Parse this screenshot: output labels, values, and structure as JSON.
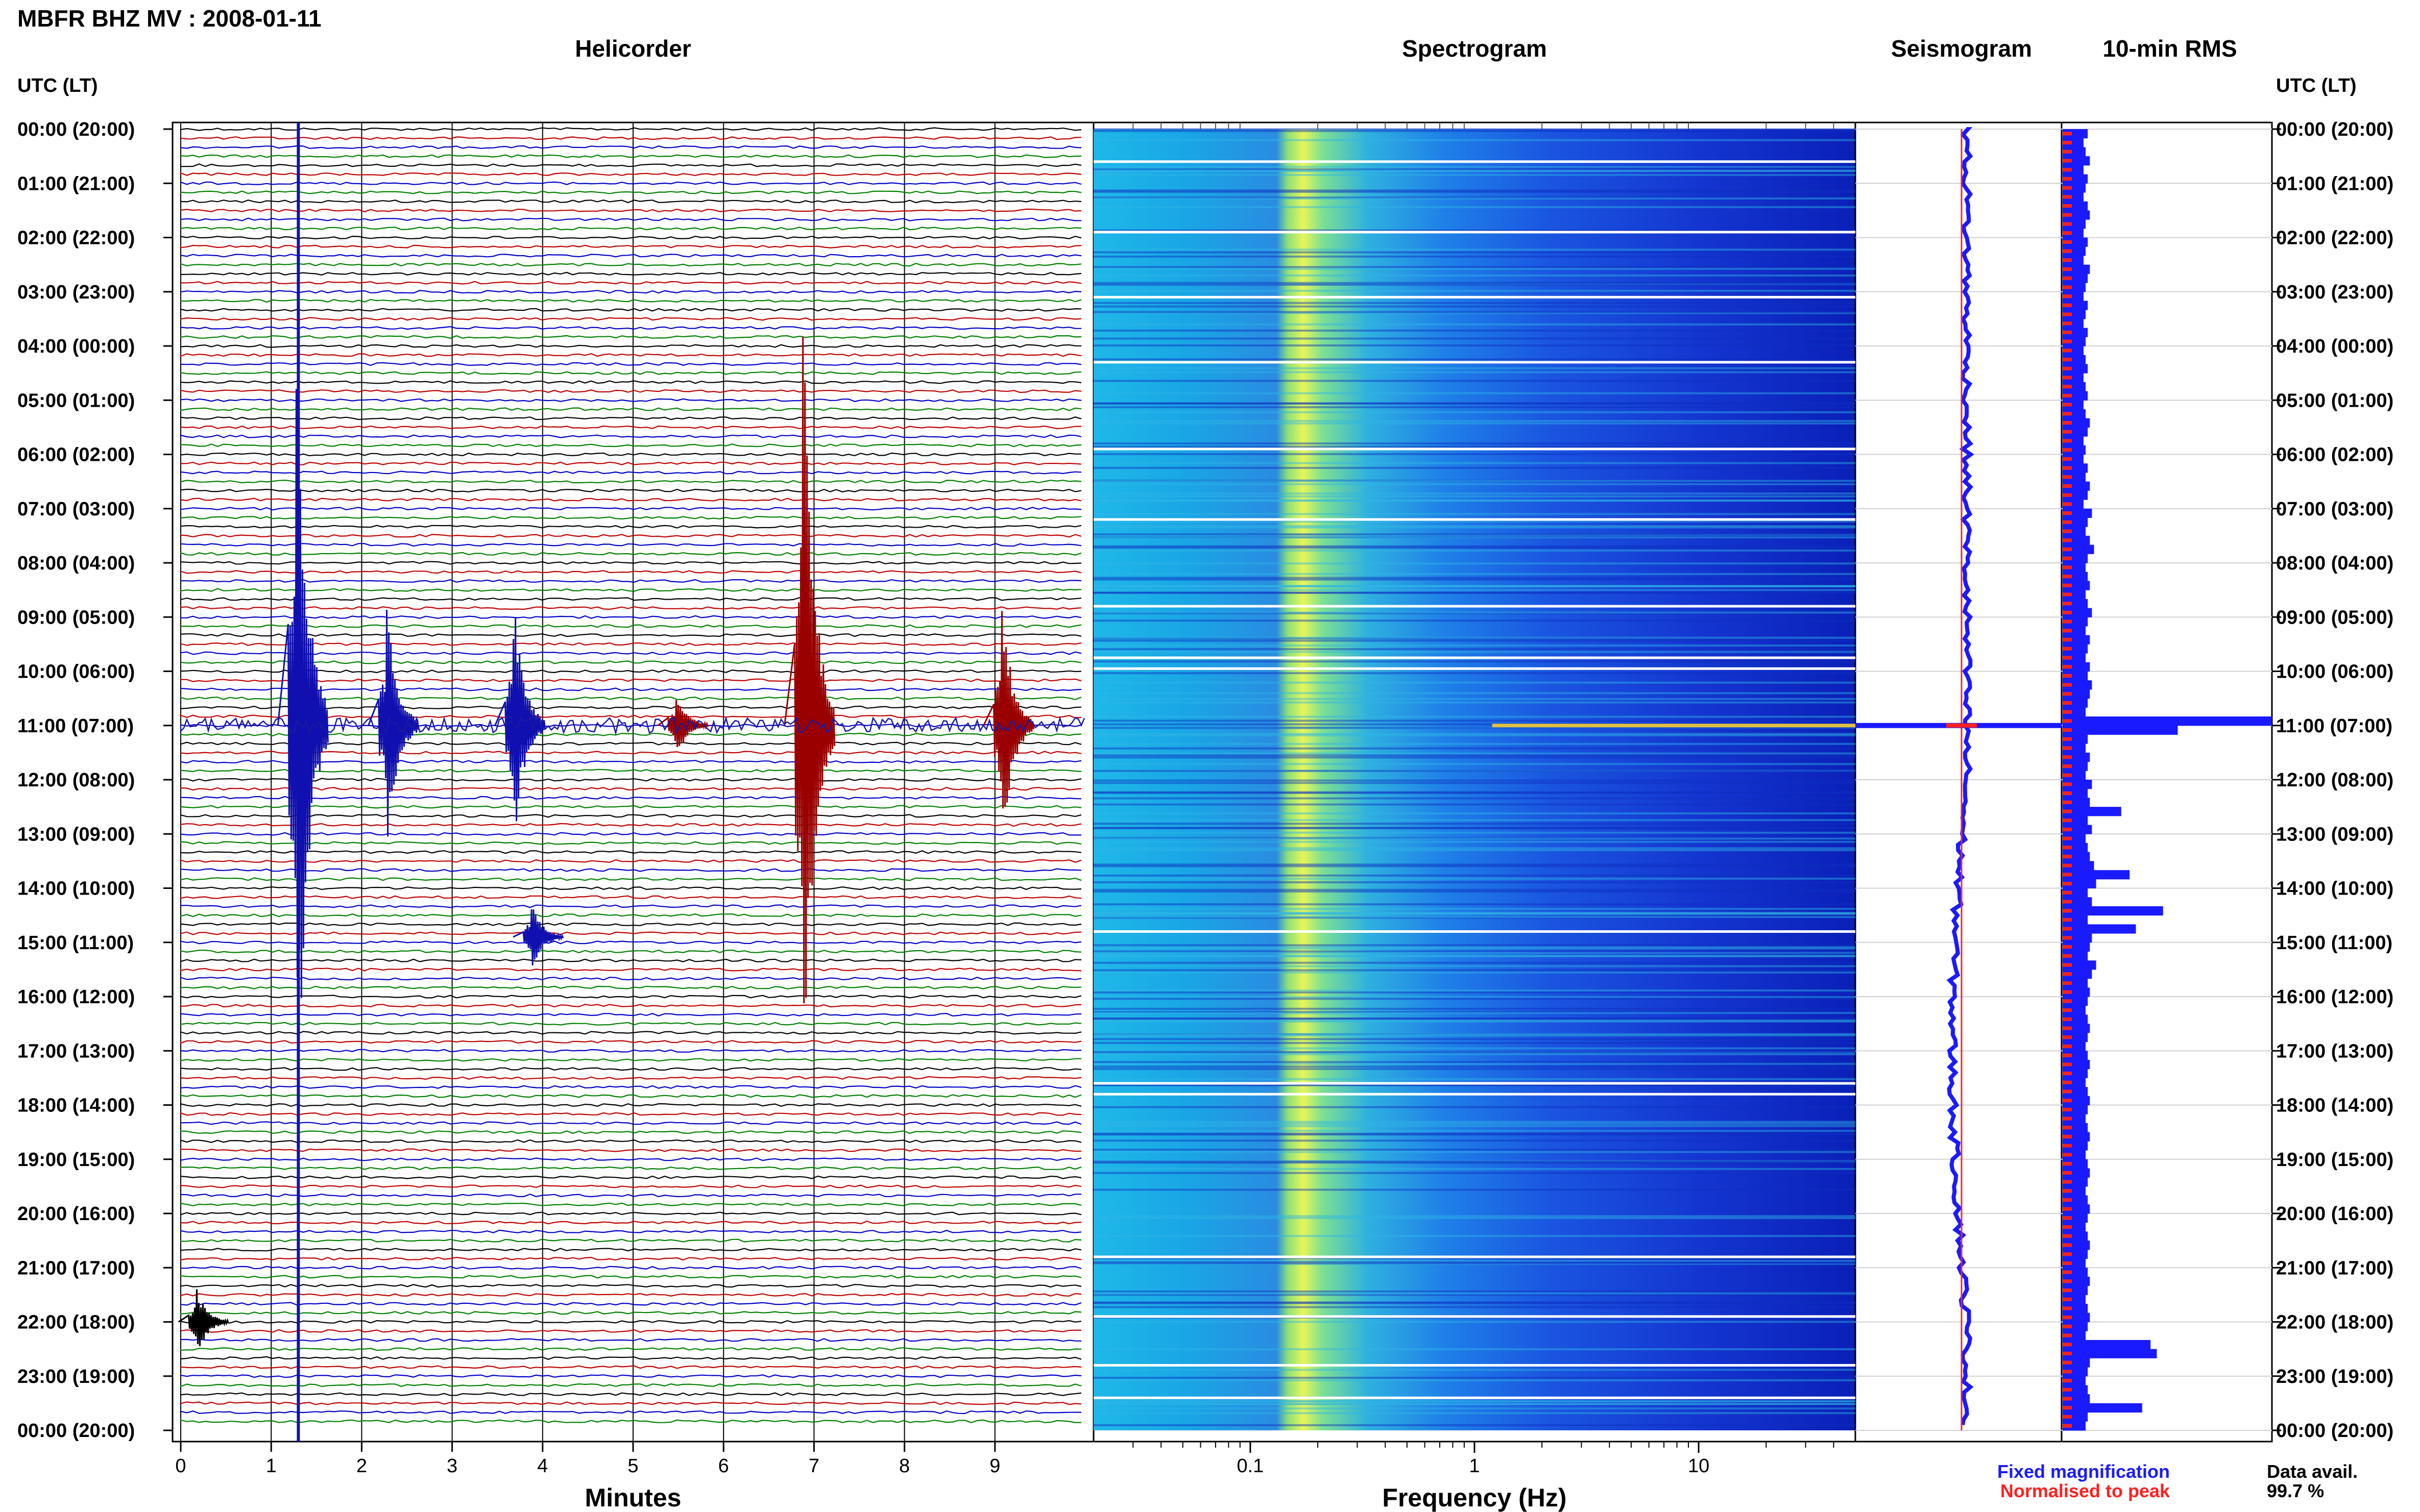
{
  "title": "MBFR BHZ MV : 2008-01-11",
  "panels": {
    "helicorder": "Helicorder",
    "spectrogram": "Spectrogram",
    "seismogram": "Seismogram",
    "rms": "10-min RMS"
  },
  "time_axis_label": "UTC (LT)",
  "footer": {
    "fixed": "Fixed magnification",
    "normalised": "Normalised to peak",
    "avail_label": "Data avail.",
    "avail_value": "99.7 %"
  },
  "colors": {
    "trace_cycle": [
      "#000000",
      "#c00000",
      "#0000cc",
      "#008000"
    ],
    "fixed": "#1a1aff",
    "normalised": "#ff2020"
  },
  "chart_data": [
    {
      "type": "line",
      "name": "helicorder",
      "title": "Helicorder",
      "xlabel": "Minutes",
      "x_ticks": [
        "0",
        "1",
        "2",
        "3",
        "4",
        "5",
        "6",
        "7",
        "8",
        "9"
      ],
      "xlim": [
        0,
        10
      ],
      "y_ticks": [
        "00:00 (20:00)",
        "01:00 (21:00)",
        "02:00 (22:00)",
        "03:00 (23:00)",
        "04:00 (00:00)",
        "05:00 (01:00)",
        "06:00 (02:00)",
        "07:00 (03:00)",
        "08:00 (04:00)",
        "09:00 (05:00)",
        "10:00 (06:00)",
        "11:00 (07:00)",
        "12:00 (08:00)",
        "13:00 (09:00)",
        "14:00 (10:00)",
        "15:00 (11:00)",
        "16:00 (12:00)",
        "17:00 (13:00)",
        "18:00 (14:00)",
        "19:00 (15:00)",
        "20:00 (16:00)",
        "21:00 (17:00)",
        "22:00 (18:00)",
        "23:00 (19:00)",
        "00:00 (20:00)"
      ],
      "rows": 144,
      "events": [
        {
          "hour": 11.0,
          "minute": 1.3,
          "amplitude": "large"
        },
        {
          "hour": 11.0,
          "minute": 6.9,
          "amplitude": "large"
        },
        {
          "hour": 11.0,
          "minute": 9.1,
          "amplitude": "medium"
        },
        {
          "hour": 11.0,
          "minute": 2.3,
          "amplitude": "medium"
        },
        {
          "hour": 11.0,
          "minute": 3.7,
          "amplitude": "medium"
        },
        {
          "hour": 11.0,
          "minute": 5.5,
          "amplitude": "small"
        },
        {
          "hour": 14.9,
          "minute": 3.9,
          "amplitude": "small"
        },
        {
          "hour": 22.0,
          "minute": 0.2,
          "amplitude": "small"
        }
      ]
    },
    {
      "type": "heatmap",
      "name": "spectrogram",
      "title": "Spectrogram",
      "xlabel": "Frequency (Hz)",
      "x_ticks": [
        "0.1",
        "1",
        "10"
      ],
      "x_scale": "log",
      "xlim": [
        0.02,
        50
      ],
      "peak_band_hz": [
        0.2,
        0.35
      ]
    },
    {
      "type": "line",
      "name": "seismogram",
      "title": "Seismogram",
      "series": [
        {
          "name": "Fixed magnification"
        },
        {
          "name": "Normalised to peak"
        }
      ],
      "spike_hour": 11.0
    },
    {
      "type": "bar",
      "name": "rms",
      "title": "10-min RMS",
      "orientation": "horizontal",
      "bins": 144,
      "values": [
        0.12,
        0.1,
        0.11,
        0.13,
        0.1,
        0.12,
        0.11,
        0.1,
        0.12,
        0.13,
        0.11,
        0.1,
        0.12,
        0.11,
        0.1,
        0.13,
        0.12,
        0.11,
        0.1,
        0.12,
        0.11,
        0.1,
        0.12,
        0.11,
        0.1,
        0.11,
        0.12,
        0.1,
        0.11,
        0.12,
        0.1,
        0.11,
        0.13,
        0.12,
        0.1,
        0.11,
        0.1,
        0.12,
        0.11,
        0.13,
        0.12,
        0.1,
        0.14,
        0.12,
        0.11,
        0.13,
        0.15,
        0.12,
        0.11,
        0.12,
        0.13,
        0.11,
        0.12,
        0.14,
        0.12,
        0.11,
        0.13,
        0.12,
        0.11,
        0.13,
        0.12,
        0.14,
        0.13,
        0.12,
        0.11,
        1.0,
        0.55,
        0.12,
        0.11,
        0.13,
        0.12,
        0.11,
        0.14,
        0.12,
        0.13,
        0.28,
        0.12,
        0.14,
        0.11,
        0.12,
        0.13,
        0.15,
        0.32,
        0.16,
        0.12,
        0.14,
        0.48,
        0.12,
        0.35,
        0.14,
        0.13,
        0.12,
        0.16,
        0.14,
        0.12,
        0.13,
        0.12,
        0.11,
        0.12,
        0.13,
        0.12,
        0.11,
        0.12,
        0.13,
        0.12,
        0.11,
        0.12,
        0.13,
        0.12,
        0.11,
        0.12,
        0.13,
        0.12,
        0.11,
        0.12,
        0.13,
        0.12,
        0.11,
        0.12,
        0.13,
        0.12,
        0.11,
        0.12,
        0.13,
        0.12,
        0.11,
        0.12,
        0.13,
        0.12,
        0.11,
        0.12,
        0.13,
        0.12,
        0.11,
        0.42,
        0.45,
        0.13,
        0.12,
        0.11,
        0.12,
        0.13,
        0.38,
        0.12,
        0.11
      ]
    }
  ]
}
